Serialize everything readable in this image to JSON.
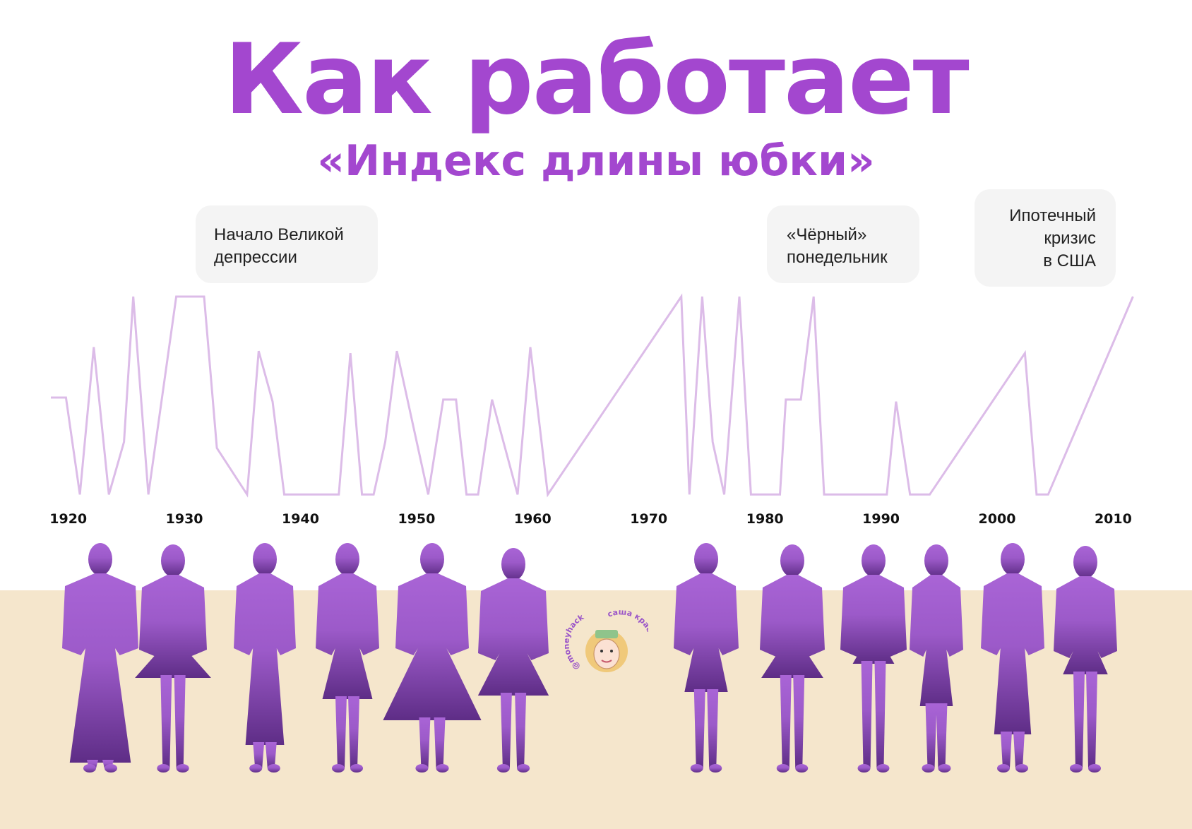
{
  "title": "Как работает",
  "subtitle": "«Индекс длины юбки»",
  "callouts": [
    {
      "lines": [
        "Начало Великой",
        "депрессии"
      ]
    },
    {
      "lines": [
        "«Чёрный»",
        "понедельник"
      ]
    },
    {
      "lines": [
        "Ипотечный",
        "кризис",
        "в США"
      ]
    }
  ],
  "watermark": {
    "handle": "@moneyhack",
    "author": "саша краснова"
  },
  "colors": {
    "title": "#a347cf",
    "line": "#dcbce8",
    "floor": "#f5e6cc",
    "silhouette_top": "#a964d6",
    "silhouette_bottom": "#5e2d86"
  },
  "chart_data": {
    "type": "line",
    "title": "",
    "xlabel": "",
    "ylabel": "",
    "xlim": [
      1918.5,
      2011.8
    ],
    "ylim": [
      0,
      100
    ],
    "x_ticks": [
      1920,
      1930,
      1940,
      1950,
      1960,
      1970,
      1980,
      1990,
      2000,
      2010
    ],
    "y_axis_shown": false,
    "grid": false,
    "series": [
      {
        "x": [
          1918.5,
          1919.8,
          1921.0,
          1922.2,
          1923.5,
          1924.8,
          1925.6,
          1926.9,
          1929.3,
          1930.6,
          1931.7,
          1932.8,
          1935.4,
          1936.4,
          1937.6,
          1938.6,
          1943.3,
          1944.3,
          1945.3,
          1946.3,
          1947.3,
          1948.3,
          1951.0,
          1952.3,
          1953.4,
          1954.3,
          1955.3,
          1956.5,
          1958.7,
          1959.8,
          1961.3,
          1972.8,
          1973.5,
          1974.6,
          1975.5,
          1976.5,
          1977.8,
          1978.8,
          1981.3,
          1981.8,
          1983.1,
          1984.2,
          1985.1,
          1990.5,
          1991.3,
          1992.5,
          1994.2,
          2002.4,
          2003.4,
          2004.4,
          2011.7
        ],
        "y": [
          50,
          50,
          2,
          75,
          2,
          28,
          100,
          2,
          100,
          100,
          100,
          25,
          2,
          73,
          48,
          2,
          2,
          72,
          2,
          2,
          28,
          73,
          2,
          49,
          49,
          2,
          2,
          49,
          2,
          75,
          2,
          100,
          2,
          100,
          28,
          2,
          100,
          2,
          2,
          49,
          49,
          100,
          2,
          2,
          48,
          2,
          2,
          72,
          2,
          2,
          100
        ]
      }
    ]
  }
}
